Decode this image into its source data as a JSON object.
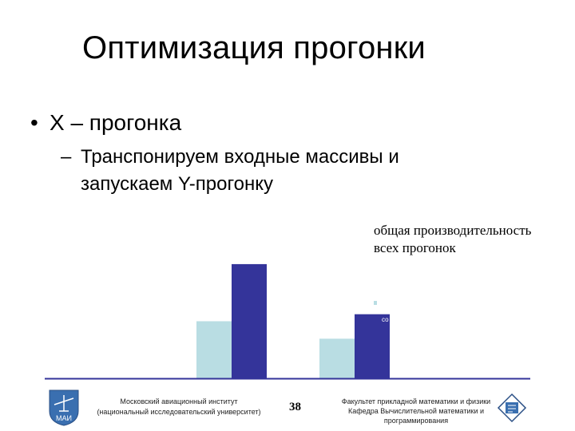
{
  "slide": {
    "title": "Оптимизация прогонки",
    "bullet": "X – прогонка",
    "bullet_marker": "•",
    "sub_dash": "–",
    "sub_line1": "Транспонируем входные массивы и",
    "sub_line2": "запускаем Y-прогонку",
    "caption_line1": "общая производительность",
    "caption_line2": "всех прогонок",
    "legend_fragment": "со"
  },
  "footer": {
    "institute_line1": "Московский авиационный институт",
    "institute_line2": "(национальный исследовательский университет)",
    "page_number": "38",
    "faculty_line1": "Факультет прикладной математики и физики",
    "faculty_line2": "Кафедра Вычислительной математики и",
    "faculty_line3": "программирования",
    "logo_text": "МАИ"
  },
  "chart_data": {
    "type": "bar",
    "title": "",
    "xlabel": "",
    "ylabel": "",
    "categories": [
      "",
      ""
    ],
    "series": [
      {
        "color": "#b9dde3",
        "values": [
          0.49,
          0.34
        ]
      },
      {
        "color": "#34349a",
        "values": [
          0.98,
          0.55
        ]
      }
    ],
    "ylim": [
      0,
      1
    ],
    "grid": false
  }
}
